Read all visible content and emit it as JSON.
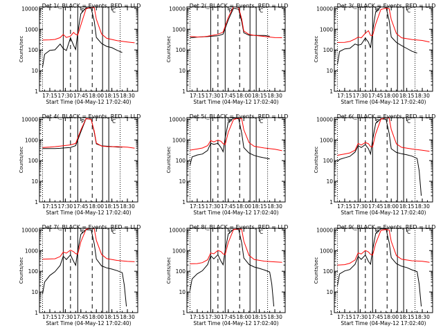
{
  "figure": {
    "ylabel": "Counts/sec",
    "xlabel": "Start Time (04-May-12 17:02:40)",
    "colors": {
      "events": "#000000",
      "lld": "#ff0000",
      "background": "#ffffff"
    }
  },
  "chart_data": {
    "type": "line",
    "grid": false,
    "ylog": true,
    "ylim": [
      1,
      12000
    ],
    "xlim": [
      "17:05",
      "18:40"
    ],
    "x_ticks": [
      "17:15",
      "17:30",
      "17:45",
      "18:00",
      "18:15",
      "18:30"
    ],
    "y_ticks": [
      "1",
      "10",
      "100",
      "1000",
      "10000"
    ],
    "dotted_lines": [
      "17:08",
      "18:23"
    ],
    "solid_lines": [
      "17:28",
      "17:42",
      "18:06",
      "18:12"
    ],
    "dashed_lines": [
      "17:35",
      "17:56"
    ],
    "markers": [
      {
        "label": "P",
        "at": "17:47"
      },
      {
        "label": "C",
        "at": "18:17"
      }
    ],
    "panels": [
      {
        "title": "Det 1(_BLACK = Events, RED = LLD",
        "series": [
          {
            "name": "Events",
            "color": "#000000",
            "x": [
              "17:08",
              "17:10",
              "17:15",
              "17:20",
              "17:25",
              "17:28",
              "17:31",
              "17:35",
              "17:38",
              "17:40",
              "17:42",
              "17:45",
              "17:50",
              "17:55",
              "17:58",
              "18:00",
              "18:05",
              "18:10",
              "18:15",
              "18:20",
              "18:25"
            ],
            "y": [
              15,
              60,
              90,
              95,
              180,
              110,
              90,
              380,
              170,
              110,
              700,
              6000,
              11500,
              10800,
              2500,
              400,
              200,
              140,
              120,
              90,
              75
            ]
          },
          {
            "name": "LLD",
            "color": "#ff0000",
            "x": [
              "17:08",
              "17:15",
              "17:20",
              "17:25",
              "17:28",
              "17:31",
              "17:35",
              "17:38",
              "17:40",
              "17:42",
              "17:45",
              "17:50",
              "17:55",
              "17:58",
              "18:00",
              "18:05",
              "18:10",
              "18:20",
              "18:30",
              "18:37"
            ],
            "y": [
              300,
              320,
              340,
              420,
              600,
              420,
              480,
              700,
              550,
              500,
              1500,
              9000,
              11000,
              10500,
              3000,
              600,
              380,
              300,
              260,
              220
            ]
          }
        ]
      },
      {
        "title": "Det 2(_BLACK = Events, RED = LLD",
        "series": [
          {
            "name": "Events",
            "color": "#000000",
            "x": [
              "17:08",
              "17:15",
              "17:20",
              "17:25",
              "17:30",
              "17:35",
              "17:40",
              "17:45",
              "17:50",
              "17:55",
              "17:58",
              "18:00",
              "18:05",
              "18:10",
              "18:15",
              "18:20",
              "18:25"
            ],
            "y": [
              380,
              390,
              400,
              420,
              450,
              480,
              600,
              3000,
              11000,
              10000,
              2500,
              700,
              520,
              500,
              480,
              470,
              460
            ]
          },
          {
            "name": "LLD",
            "color": "#ff0000",
            "x": [
              "17:08",
              "17:15",
              "17:20",
              "17:25",
              "17:30",
              "17:35",
              "17:40",
              "17:45",
              "17:50",
              "17:55",
              "17:58",
              "18:00",
              "18:05",
              "18:10",
              "18:15",
              "18:20",
              "18:30",
              "18:37"
            ],
            "y": [
              450,
              450,
              460,
              480,
              520,
              560,
              700,
              3500,
              11500,
              10500,
              3000,
              800,
              560,
              520,
              500,
              480,
              420,
              390
            ]
          }
        ]
      },
      {
        "title": "Det 3(_BLACK = Events, RED = LLD",
        "series": [
          {
            "name": "Events",
            "color": "#000000",
            "x": [
              "17:08",
              "17:10",
              "17:15",
              "17:20",
              "17:25",
              "17:28",
              "17:31",
              "17:35",
              "17:38",
              "17:40",
              "17:42",
              "17:45",
              "17:50",
              "17:55",
              "17:58",
              "18:00",
              "18:05",
              "18:10",
              "18:15",
              "18:20",
              "18:25"
            ],
            "y": [
              20,
              80,
              110,
              120,
              200,
              180,
              200,
              400,
              250,
              130,
              800,
              7000,
              11500,
              10800,
              2500,
              400,
              220,
              160,
              120,
              90,
              70
            ]
          },
          {
            "name": "LLD",
            "color": "#ff0000",
            "x": [
              "17:08",
              "17:15",
              "17:20",
              "17:25",
              "17:28",
              "17:31",
              "17:35",
              "17:38",
              "17:40",
              "17:42",
              "17:45",
              "17:50",
              "17:55",
              "17:58",
              "18:00",
              "18:05",
              "18:10",
              "18:20",
              "18:30",
              "18:37"
            ],
            "y": [
              230,
              240,
              260,
              330,
              400,
              360,
              600,
              800,
              480,
              480,
              1800,
              9500,
              11000,
              10500,
              3200,
              650,
              400,
              320,
              280,
              240
            ]
          }
        ]
      },
      {
        "title": "Det 4(_BLACK = Events, RED = LLD",
        "series": [
          {
            "name": "Events",
            "color": "#000000",
            "x": [
              "17:08",
              "17:15",
              "17:20",
              "17:25",
              "17:30",
              "17:35",
              "17:40",
              "17:45",
              "17:50",
              "17:55",
              "17:58",
              "18:00",
              "18:05",
              "18:10",
              "18:15",
              "18:20",
              "18:25"
            ],
            "y": [
              380,
              390,
              400,
              420,
              440,
              460,
              550,
              2500,
              10500,
              9800,
              2200,
              600,
              480,
              470,
              460,
              450,
              440
            ]
          },
          {
            "name": "LLD",
            "color": "#ff0000",
            "x": [
              "17:08",
              "17:15",
              "17:20",
              "17:25",
              "17:30",
              "17:35",
              "17:40",
              "17:45",
              "17:50",
              "17:55",
              "17:58",
              "18:00",
              "18:05",
              "18:10",
              "18:15",
              "18:20",
              "18:30",
              "18:37"
            ],
            "y": [
              430,
              440,
              450,
              470,
              500,
              540,
              650,
              3000,
              11000,
              10200,
              2800,
              750,
              540,
              500,
              480,
              470,
              430,
              400
            ]
          }
        ]
      },
      {
        "title": "Det 5(_BLACK = Events, RED = LLD",
        "series": [
          {
            "name": "Events",
            "color": "#000000",
            "x": [
              "17:08",
              "17:10",
              "17:15",
              "17:20",
              "17:25",
              "17:28",
              "17:31",
              "17:35",
              "17:38",
              "17:40",
              "17:42",
              "17:45",
              "17:50",
              "17:55",
              "17:58",
              "18:00",
              "18:05",
              "18:10",
              "18:15",
              "18:20",
              "18:25"
            ],
            "y": [
              60,
              160,
              200,
              220,
              320,
              700,
              600,
              650,
              400,
              250,
              1200,
              7000,
              11000,
              10500,
              2200,
              450,
              250,
              190,
              160,
              140,
              120
            ]
          },
          {
            "name": "LLD",
            "color": "#ff0000",
            "x": [
              "17:08",
              "17:15",
              "17:20",
              "17:25",
              "17:28",
              "17:31",
              "17:35",
              "17:38",
              "17:40",
              "17:42",
              "17:45",
              "17:50",
              "17:55",
              "17:58",
              "18:00",
              "18:05",
              "18:10",
              "18:20",
              "18:30",
              "18:37"
            ],
            "y": [
              320,
              340,
              380,
              500,
              900,
              800,
              1000,
              900,
              700,
              650,
              2500,
              10000,
              11500,
              10500,
              3000,
              700,
              460,
              380,
              340,
              300
            ]
          }
        ]
      },
      {
        "title": "Det 6(_BLACK = Events, RED = LLD",
        "series": [
          {
            "name": "Events",
            "color": "#000000",
            "x": [
              "17:08",
              "17:10",
              "17:15",
              "17:20",
              "17:25",
              "17:28",
              "17:31",
              "17:35",
              "17:38",
              "17:40",
              "17:42",
              "17:45",
              "17:50",
              "17:55",
              "17:58",
              "18:00",
              "18:05",
              "18:10",
              "18:15",
              "18:20",
              "18:25",
              "18:27",
              "18:29"
            ],
            "y": [
              90,
              120,
              140,
              160,
              250,
              500,
              400,
              550,
              350,
              200,
              1000,
              6500,
              11000,
              10500,
              2200,
              400,
              260,
              220,
              190,
              160,
              120,
              30,
              2
            ]
          },
          {
            "name": "LLD",
            "color": "#ff0000",
            "x": [
              "17:08",
              "17:15",
              "17:20",
              "17:25",
              "17:28",
              "17:31",
              "17:35",
              "17:38",
              "17:40",
              "17:42",
              "17:45",
              "17:50",
              "17:55",
              "17:58",
              "18:00",
              "18:05",
              "18:10",
              "18:20",
              "18:30",
              "18:37"
            ],
            "y": [
              180,
              200,
              230,
              320,
              700,
              600,
              800,
              700,
              500,
              480,
              2000,
              9800,
              11200,
              10600,
              3000,
              600,
              420,
              360,
              320,
              280
            ]
          }
        ]
      },
      {
        "title": "Det 7(_BLACK = Events, RED = LLD",
        "series": [
          {
            "name": "Events",
            "color": "#000000",
            "x": [
              "17:08",
              "17:10",
              "17:15",
              "17:20",
              "17:25",
              "17:28",
              "17:31",
              "17:35",
              "17:38",
              "17:40",
              "17:42",
              "17:45",
              "17:50",
              "17:55",
              "17:58",
              "18:00",
              "18:05",
              "18:10",
              "18:15",
              "18:20",
              "18:25",
              "18:27",
              "18:29"
            ],
            "y": [
              8,
              30,
              60,
              90,
              180,
              500,
              350,
              600,
              300,
              200,
              1000,
              6500,
              11000,
              10500,
              2200,
              400,
              180,
              140,
              120,
              100,
              80,
              20,
              2
            ]
          },
          {
            "name": "LLD",
            "color": "#ff0000",
            "x": [
              "17:08",
              "17:15",
              "17:20",
              "17:25",
              "17:28",
              "17:31",
              "17:35",
              "17:38",
              "17:40",
              "17:42",
              "17:45",
              "17:50",
              "17:55",
              "17:58",
              "18:00",
              "18:05",
              "18:10",
              "18:20",
              "18:30",
              "18:37"
            ],
            "y": [
              380,
              400,
              420,
              550,
              900,
              800,
              1100,
              900,
              700,
              650,
              2500,
              10000,
              11500,
              10500,
              3000,
              650,
              420,
              350,
              320,
              290
            ]
          }
        ]
      },
      {
        "title": "Det 8(_BLACK = Events, RED = LLD",
        "series": [
          {
            "name": "Events",
            "color": "#000000",
            "x": [
              "17:08",
              "17:10",
              "17:15",
              "17:20",
              "17:25",
              "17:28",
              "17:31",
              "17:35",
              "17:38",
              "17:40",
              "17:42",
              "17:45",
              "17:50",
              "17:55",
              "17:58",
              "18:00",
              "18:05",
              "18:10",
              "18:15",
              "18:20",
              "18:25",
              "18:27",
              "18:29"
            ],
            "y": [
              12,
              40,
              70,
              100,
              200,
              550,
              400,
              650,
              320,
              220,
              1100,
              6800,
              11000,
              10500,
              2300,
              420,
              200,
              150,
              130,
              110,
              90,
              25,
              2
            ]
          },
          {
            "name": "LLD",
            "color": "#ff0000",
            "x": [
              "17:08",
              "17:15",
              "17:20",
              "17:25",
              "17:28",
              "17:31",
              "17:35",
              "17:38",
              "17:40",
              "17:42",
              "17:45",
              "17:50",
              "17:55",
              "17:58",
              "18:00",
              "18:05",
              "18:10",
              "18:20",
              "18:30",
              "18:37"
            ],
            "y": [
              230,
              250,
              280,
              380,
              800,
              700,
              1000,
              850,
              650,
              600,
              2300,
              9800,
              11200,
              10600,
              3000,
              620,
              400,
              330,
              300,
              270
            ]
          }
        ]
      },
      {
        "title": "Det 9(_BLACK = Events, RED = LLD",
        "series": [
          {
            "name": "Events",
            "color": "#000000",
            "x": [
              "17:08",
              "17:10",
              "17:15",
              "17:20",
              "17:25",
              "17:28",
              "17:31",
              "17:35",
              "17:38",
              "17:40",
              "17:42",
              "17:45",
              "17:50",
              "17:55",
              "17:58",
              "18:00",
              "18:05",
              "18:10",
              "18:15",
              "18:20",
              "18:25",
              "18:27",
              "18:29"
            ],
            "y": [
              20,
              70,
              100,
              120,
              220,
              550,
              400,
              650,
              320,
              230,
              1100,
              6800,
              11000,
              10500,
              2300,
              430,
              220,
              170,
              150,
              120,
              100,
              25,
              2
            ]
          },
          {
            "name": "LLD",
            "color": "#ff0000",
            "x": [
              "17:08",
              "17:15",
              "17:20",
              "17:25",
              "17:28",
              "17:31",
              "17:35",
              "17:38",
              "17:40",
              "17:42",
              "17:45",
              "17:50",
              "17:55",
              "17:58",
              "18:00",
              "18:05",
              "18:10",
              "18:20",
              "18:30",
              "18:37"
            ],
            "y": [
              200,
              220,
              250,
              350,
              750,
              650,
              950,
              800,
              620,
              580,
              2200,
              9600,
              11000,
              10500,
              3000,
              600,
              400,
              330,
              300,
              270
            ]
          }
        ]
      }
    ]
  }
}
